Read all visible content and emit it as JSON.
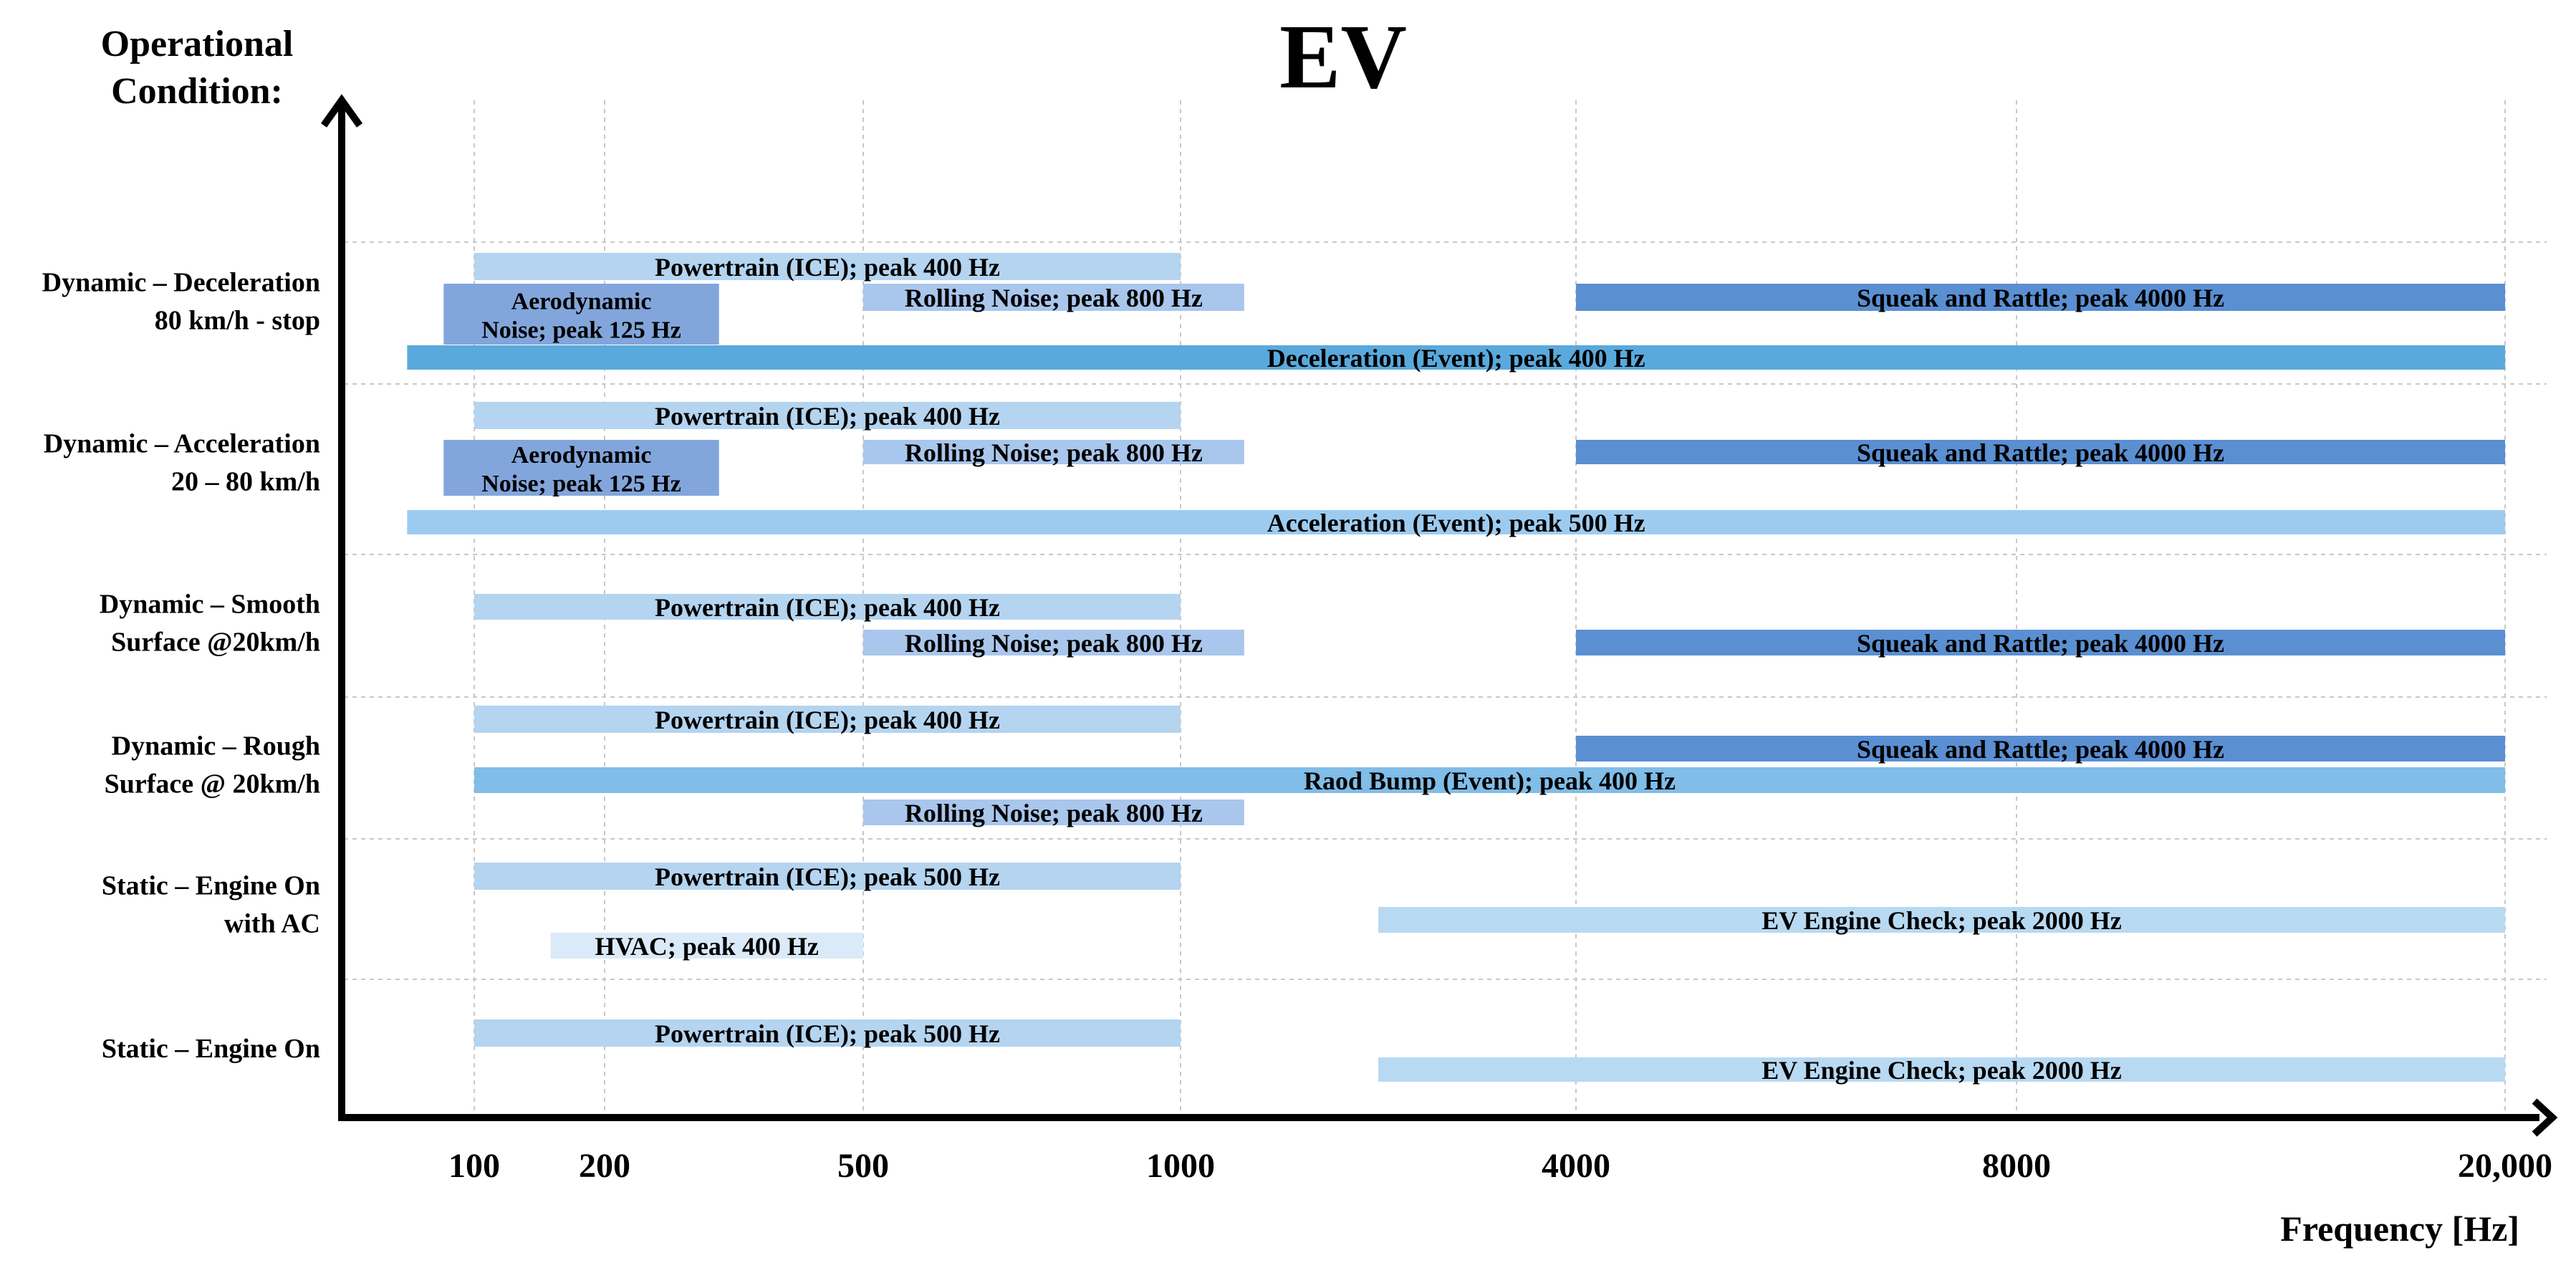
{
  "chart_data": {
    "type": "range-bar",
    "title": "EV",
    "ylabel": "Operational Condition:",
    "xlabel": "Frequency [Hz]",
    "x_ticks": [
      "100",
      "200",
      "500",
      "1000",
      "4000",
      "8000",
      "20,000"
    ],
    "x_tick_values": [
      100,
      200,
      500,
      1000,
      4000,
      8000,
      20000
    ],
    "colors": {
      "powertrain": "#b4d4f0",
      "aero": "#82a6dc",
      "rolling": "#a9c6ec",
      "squeak": "#5a8fd2",
      "decel": "#5aa9dc",
      "accel": "#9dcbf0",
      "bump": "#80bde8",
      "hvac": "#dbeaf8",
      "evcheck": "#b8d9f2"
    },
    "conditions": [
      {
        "label": [
          "Dynamic – Deceleration",
          "80 km/h - stop"
        ],
        "bars": [
          {
            "label": [
              "Powertrain (ICE); peak 400 Hz"
            ],
            "from": 100,
            "to": 1000,
            "color": "powertrain"
          },
          {
            "label": [
              "Aerodynamic",
              "Noise; peak 125 Hz"
            ],
            "from": 85,
            "to": 300,
            "color": "aero"
          },
          {
            "label": [
              "Rolling Noise; peak 800 Hz"
            ],
            "from": 500,
            "to": 1250,
            "color": "rolling"
          },
          {
            "label": [
              "Squeak and Rattle; peak 4000 Hz"
            ],
            "from": 4000,
            "to": 20000,
            "color": "squeak"
          },
          {
            "label": [
              "Deceleration (Event); peak 400 Hz"
            ],
            "from": 70,
            "to": 20000,
            "color": "decel"
          }
        ]
      },
      {
        "label": [
          "Dynamic – Acceleration",
          "20 – 80 km/h"
        ],
        "bars": [
          {
            "label": [
              "Powertrain (ICE); peak 400 Hz"
            ],
            "from": 100,
            "to": 1000,
            "color": "powertrain"
          },
          {
            "label": [
              "Aerodynamic",
              "Noise; peak 125 Hz"
            ],
            "from": 85,
            "to": 300,
            "color": "aero"
          },
          {
            "label": [
              "Rolling Noise; peak 800 Hz"
            ],
            "from": 500,
            "to": 1250,
            "color": "rolling"
          },
          {
            "label": [
              "Squeak and Rattle; peak 4000 Hz"
            ],
            "from": 4000,
            "to": 20000,
            "color": "squeak"
          },
          {
            "label": [
              "Acceleration (Event); peak 500 Hz"
            ],
            "from": 70,
            "to": 20000,
            "color": "accel"
          }
        ]
      },
      {
        "label": [
          "Dynamic – Smooth",
          "Surface @20km/h"
        ],
        "bars": [
          {
            "label": [
              "Powertrain (ICE); peak 400 Hz"
            ],
            "from": 100,
            "to": 1000,
            "color": "powertrain"
          },
          {
            "label": [
              "Rolling Noise; peak 800 Hz"
            ],
            "from": 500,
            "to": 1250,
            "color": "rolling"
          },
          {
            "label": [
              "Squeak and Rattle; peak 4000 Hz"
            ],
            "from": 4000,
            "to": 20000,
            "color": "squeak"
          }
        ]
      },
      {
        "label": [
          "Dynamic – Rough",
          "Surface @ 20km/h"
        ],
        "bars": [
          {
            "label": [
              "Powertrain (ICE); peak 400 Hz"
            ],
            "from": 100,
            "to": 1000,
            "color": "powertrain"
          },
          {
            "label": [
              "Squeak and Rattle; peak 4000 Hz"
            ],
            "from": 4000,
            "to": 20000,
            "color": "squeak"
          },
          {
            "label": [
              "Raod Bump (Event); peak 400 Hz"
            ],
            "from": 100,
            "to": 20000,
            "color": "bump"
          },
          {
            "label": [
              "Rolling Noise; peak 800 Hz"
            ],
            "from": 500,
            "to": 1250,
            "color": "rolling"
          }
        ]
      },
      {
        "label": [
          "Static – Engine On",
          "with AC"
        ],
        "bars": [
          {
            "label": [
              "Powertrain (ICE); peak 500 Hz"
            ],
            "from": 100,
            "to": 1000,
            "color": "powertrain"
          },
          {
            "label": [
              "EV Engine Check; peak 2000 Hz"
            ],
            "from": 2000,
            "to": 20000,
            "color": "evcheck"
          },
          {
            "label": [
              "HVAC; peak 400 Hz"
            ],
            "from": 150,
            "to": 500,
            "color": "hvac"
          }
        ]
      },
      {
        "label": [
          "Static – Engine On"
        ],
        "bars": [
          {
            "label": [
              "Powertrain (ICE); peak 500 Hz"
            ],
            "from": 100,
            "to": 1000,
            "color": "powertrain"
          },
          {
            "label": [
              "EV Engine Check; peak 2000 Hz"
            ],
            "from": 2000,
            "to": 20000,
            "color": "evcheck"
          }
        ]
      }
    ]
  }
}
